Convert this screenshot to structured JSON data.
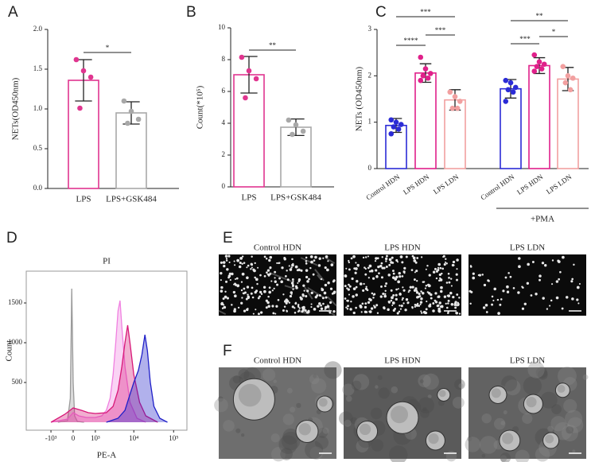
{
  "chart_data": [
    {
      "type": "bar",
      "panel": "A",
      "ylabel": "NETs(OD450nm)",
      "categories": [
        "LPS",
        "LPS+GSK484"
      ],
      "values": [
        1.36,
        0.95
      ],
      "errors": [
        0.26,
        0.14
      ],
      "points": [
        [
          1.62,
          1.48,
          1.4,
          1.01
        ],
        [
          1.1,
          0.97,
          0.87,
          0.82
        ]
      ],
      "colors": [
        "#e0358f",
        "#a8a8a8"
      ],
      "ylim": [
        0,
        2
      ],
      "yticks": [
        {
          "value": 0,
          "label": "0.0"
        },
        0.5,
        {
          "value": 1,
          "label": "1.0"
        },
        1.5,
        {
          "value": 2,
          "label": "2.0"
        }
      ],
      "brackets": [
        {
          "label": "*",
          "between": [
            0,
            1
          ]
        }
      ]
    },
    {
      "type": "bar",
      "panel": "B",
      "ylabel": "Count(*10⁵)",
      "categories": [
        "LPS",
        "LPS+GSK484"
      ],
      "values": [
        7.05,
        3.75
      ],
      "errors": [
        1.15,
        0.52
      ],
      "points": [
        [
          8.15,
          7.3,
          6.8,
          5.6
        ],
        [
          4.2,
          3.9,
          3.5,
          3.3
        ]
      ],
      "colors": [
        "#e0358f",
        "#a8a8a8"
      ],
      "ylim": [
        0,
        10
      ],
      "yticks": [
        0,
        2,
        4,
        6,
        8,
        10
      ],
      "brackets": [
        {
          "label": "**",
          "between": [
            0,
            1
          ]
        }
      ]
    },
    {
      "type": "bar",
      "panel": "C",
      "ylabel": "NETs (OD450nm)",
      "categories": [
        "Control HDN",
        "LPS HDN",
        "LPS LDN",
        "Control HDN",
        "LPS HDN",
        "LPS LDN"
      ],
      "values": [
        0.93,
        2.06,
        1.48,
        1.72,
        2.22,
        1.93
      ],
      "errors": [
        0.15,
        0.2,
        0.22,
        0.2,
        0.17,
        0.25
      ],
      "points": [
        [
          1.05,
          1.0,
          0.95,
          0.9,
          0.85,
          0.75
        ],
        [
          2.4,
          2.15,
          2.05,
          2.0,
          1.95,
          1.9
        ],
        [
          1.65,
          1.55,
          1.45,
          1.3,
          1.3
        ],
        [
          1.9,
          1.85,
          1.75,
          1.7,
          1.65,
          1.45
        ],
        [
          2.45,
          2.3,
          2.25,
          2.2,
          2.15,
          2.1
        ],
        [
          2.2,
          2.0,
          1.95,
          1.85,
          1.7
        ]
      ],
      "colors": [
        "#2b2bd6",
        "#e0208a",
        "#f2a0a0",
        "#2b2bd6",
        "#e0208a",
        "#f2a0a0"
      ],
      "ylim": [
        0,
        3
      ],
      "yticks": [
        0,
        1,
        2,
        3
      ],
      "group_label": "+PMA",
      "brackets": [
        {
          "label": "****",
          "between": [
            0,
            1
          ]
        },
        {
          "label": "***",
          "between": [
            1,
            2
          ]
        },
        {
          "label": "***",
          "between": [
            0,
            2
          ]
        },
        {
          "label": "***",
          "between": [
            3,
            4
          ]
        },
        {
          "label": "*",
          "between": [
            4,
            5
          ]
        },
        {
          "label": "**",
          "between": [
            3,
            5
          ]
        }
      ]
    },
    {
      "type": "histogram_overlay",
      "panel": "D",
      "title": "PI",
      "xlabel": "PE-A",
      "ylabel": "Count",
      "xscale": "biexponential",
      "xlim": [
        -4500,
        216000
      ],
      "ylim": [
        -100,
        1900
      ],
      "xticks": [
        {
          "value": -1000,
          "label": "-10³"
        },
        0,
        {
          "value": 1000,
          "label": "10³"
        },
        {
          "value": 10000,
          "label": "10⁴"
        },
        {
          "value": 100000,
          "label": "10⁵"
        }
      ],
      "yticks": [
        500,
        1000,
        1500
      ],
      "series": [
        {
          "color": "#9a9a9a",
          "x": [
            -600,
            -200,
            -100,
            -50,
            0,
            50,
            150,
            400
          ],
          "values": [
            0,
            20,
            300,
            1680,
            500,
            80,
            10,
            0
          ]
        },
        {
          "color": "#f080e0",
          "x": [
            -1000,
            -200,
            0,
            200,
            500,
            1000,
            1500,
            2000,
            2500,
            3000,
            3500,
            4000,
            4500,
            5000,
            6000,
            8000,
            12000,
            20000
          ],
          "values": [
            0,
            40,
            120,
            80,
            60,
            60,
            80,
            150,
            300,
            600,
            1000,
            1400,
            1530,
            1200,
            700,
            250,
            50,
            0
          ]
        },
        {
          "color": "#d81878",
          "x": [
            -1000,
            -300,
            0,
            300,
            600,
            1000,
            2000,
            3000,
            4000,
            5000,
            6000,
            7000,
            8000,
            10000,
            14000,
            20000,
            40000
          ],
          "values": [
            0,
            100,
            180,
            150,
            120,
            110,
            120,
            200,
            400,
            700,
            1000,
            1220,
            1000,
            600,
            250,
            80,
            0
          ]
        },
        {
          "color": "#2020c8",
          "x": [
            2000,
            4000,
            6000,
            8000,
            10000,
            13000,
            16000,
            19000,
            22000,
            26000,
            32000,
            45000,
            70000
          ],
          "values": [
            0,
            50,
            150,
            350,
            500,
            650,
            850,
            1100,
            900,
            500,
            200,
            50,
            0
          ]
        }
      ]
    }
  ],
  "micrographs": [
    {
      "panel": "E",
      "titles": [
        "Control HDN",
        "LPS HDN",
        "LPS LDN"
      ]
    },
    {
      "panel": "F",
      "titles": [
        "Control HDN",
        "LPS HDN",
        "LPS LDN"
      ]
    }
  ]
}
